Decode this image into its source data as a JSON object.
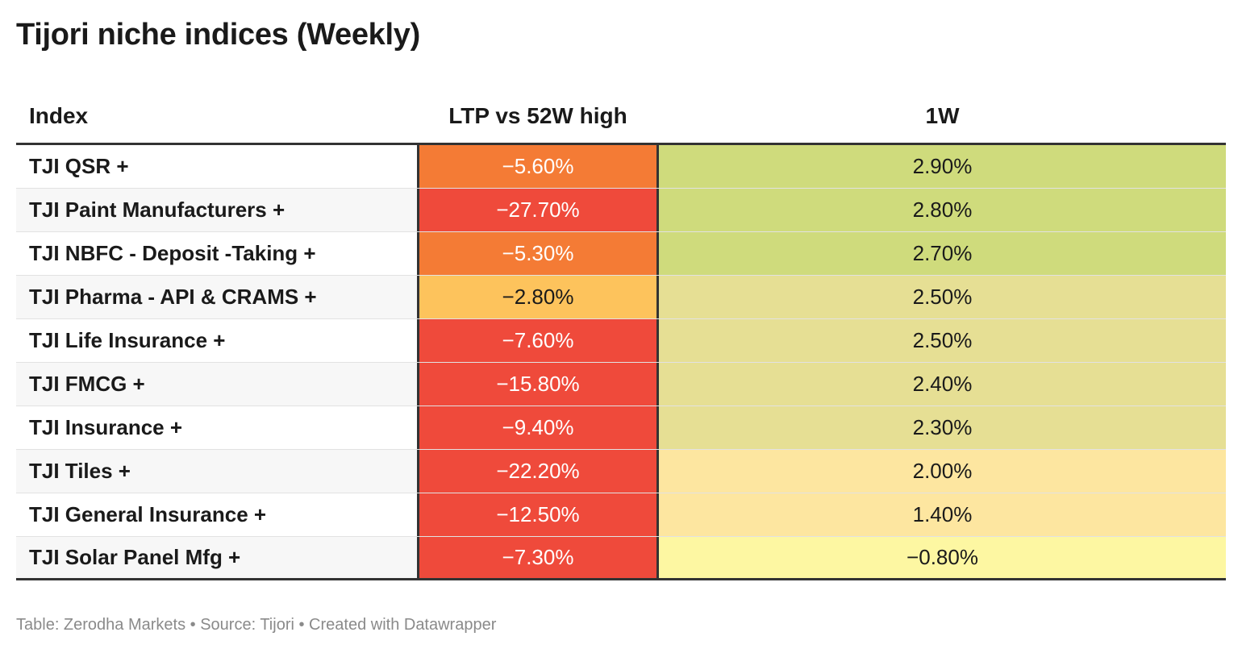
{
  "title": "Tijori niche indices (Weekly)",
  "footer": "Table: Zerodha Markets • Source: Tijori • Created with Datawrapper",
  "chart_data": {
    "type": "table",
    "title": "Tijori niche indices (Weekly)",
    "columns": [
      "Index",
      "LTP vs 52W high",
      "1W"
    ],
    "rows": [
      {
        "index": "TJI QSR +",
        "ltp_label": "−5.60%",
        "ltp": -5.6,
        "w1_label": "2.90%",
        "w1": 2.9
      },
      {
        "index": "TJI Paint Manufacturers +",
        "ltp_label": "−27.70%",
        "ltp": -27.7,
        "w1_label": "2.80%",
        "w1": 2.8
      },
      {
        "index": "TJI NBFC - Deposit -Taking +",
        "ltp_label": "−5.30%",
        "ltp": -5.3,
        "w1_label": "2.70%",
        "w1": 2.7
      },
      {
        "index": "TJI Pharma - API & CRAMS +",
        "ltp_label": "−2.80%",
        "ltp": -2.8,
        "w1_label": "2.50%",
        "w1": 2.5
      },
      {
        "index": "TJI Life Insurance +",
        "ltp_label": "−7.60%",
        "ltp": -7.6,
        "w1_label": "2.50%",
        "w1": 2.5
      },
      {
        "index": "TJI FMCG +",
        "ltp_label": "−15.80%",
        "ltp": -15.8,
        "w1_label": "2.40%",
        "w1": 2.4
      },
      {
        "index": "TJI Insurance +",
        "ltp_label": "−9.40%",
        "ltp": -9.4,
        "w1_label": "2.30%",
        "w1": 2.3
      },
      {
        "index": "TJI Tiles +",
        "ltp_label": "−22.20%",
        "ltp": -22.2,
        "w1_label": "2.00%",
        "w1": 2.0
      },
      {
        "index": "TJI General Insurance +",
        "ltp_label": "−12.50%",
        "ltp": -12.5,
        "w1_label": "1.40%",
        "w1": 1.4
      },
      {
        "index": "TJI Solar Panel Mfg +",
        "ltp_label": "−7.30%",
        "ltp": -7.3,
        "w1_label": "−0.80%",
        "w1": -0.8
      }
    ],
    "colors": {
      "ltp_deep": "#ef4a3b",
      "ltp_mid": "#f47b35",
      "ltp_light": "#fdc35c",
      "w1_high": "#cfdb7c",
      "w1_mid": "#e6df94",
      "w1_low": "#fde6a0",
      "w1_min": "#fdf7a2"
    }
  }
}
